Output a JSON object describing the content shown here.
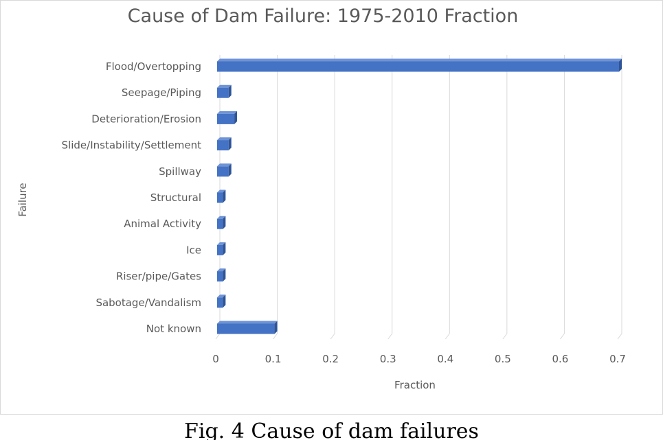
{
  "caption": "Fig. 4 Cause of dam failures",
  "colors": {
    "bar_front": "#4472c4",
    "bar_top": "#6e93d6",
    "bar_side": "#2f5597",
    "grid": "#d9d9d9",
    "text": "#595959",
    "frame": "#d9d9d9"
  },
  "chart_data": {
    "type": "bar",
    "orientation": "horizontal",
    "title": "Cause of Dam Failure: 1975-2010 Fraction",
    "xlabel": "Fraction",
    "ylabel": "Failure",
    "categories": [
      "Flood/Overtopping",
      "Seepage/Piping",
      "Deterioration/Erosion",
      "Slide/Instability/Settlement",
      "Spillway",
      "Structural",
      "Animal Activity",
      "Ice",
      "Riser/pipe/Gates",
      "Sabotage/Vandalism",
      "Not known"
    ],
    "values": [
      0.7,
      0.02,
      0.03,
      0.02,
      0.02,
      0.01,
      0.01,
      0.01,
      0.01,
      0.01,
      0.1
    ],
    "xlim": [
      0,
      0.7
    ],
    "xticks": [
      "0",
      "0.1",
      "0.2",
      "0.3",
      "0.4",
      "0.5",
      "0.6",
      "0.7"
    ],
    "grid": true,
    "legend": "none",
    "style": "3d"
  }
}
